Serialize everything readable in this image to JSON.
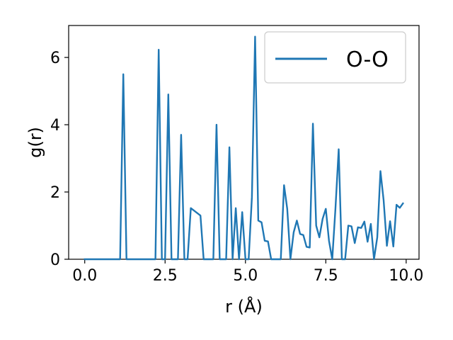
{
  "chart_data": {
    "type": "line",
    "title": "",
    "xlabel": "r (Å)",
    "ylabel": "g(r)",
    "xlim": [
      -0.5,
      10.4
    ],
    "ylim": [
      0,
      6.95
    ],
    "x_ticks": [
      0.0,
      2.5,
      5.0,
      7.5,
      10.0
    ],
    "x_tick_labels": [
      "0.0",
      "2.5",
      "5.0",
      "7.5",
      "10.0"
    ],
    "y_ticks": [
      0,
      2,
      4,
      6
    ],
    "y_tick_labels": [
      "0",
      "2",
      "4",
      "6"
    ],
    "grid": false,
    "legend_position": "top-right",
    "colors": {
      "series": "#1f77b4"
    },
    "series": [
      {
        "name": "O-O",
        "x": [
          0.0,
          1.1,
          1.2,
          1.3,
          2.2,
          2.3,
          2.4,
          2.5,
          2.6,
          2.7,
          2.8,
          2.9,
          3.0,
          3.1,
          3.2,
          3.3,
          3.6,
          3.7,
          4.0,
          4.1,
          4.2,
          4.4,
          4.5,
          4.6,
          4.7,
          4.8,
          4.9,
          5.0,
          5.1,
          5.2,
          5.3,
          5.4,
          5.5,
          5.6,
          5.7,
          5.8,
          5.9,
          6.0,
          6.1,
          6.2,
          6.3,
          6.4,
          6.5,
          6.6,
          6.7,
          6.8,
          6.9,
          7.0,
          7.1,
          7.2,
          7.3,
          7.4,
          7.5,
          7.6,
          7.7,
          7.8,
          7.9,
          8.0,
          8.1,
          8.2,
          8.3,
          8.4,
          8.5,
          8.6,
          8.7,
          8.8,
          8.9,
          9.0,
          9.1,
          9.2,
          9.3,
          9.4,
          9.5,
          9.6,
          9.7,
          9.8,
          9.9
        ],
        "values": [
          0.0,
          0.0,
          5.5,
          0.0,
          0.0,
          6.23,
          0.0,
          0.0,
          4.9,
          0.0,
          0.0,
          0.0,
          3.7,
          0.0,
          0.0,
          1.52,
          1.3,
          0.0,
          0.0,
          4.0,
          0.0,
          0.0,
          3.33,
          0.0,
          1.52,
          0.0,
          1.4,
          0.0,
          0.0,
          1.85,
          6.62,
          1.15,
          1.1,
          0.55,
          0.53,
          0.0,
          0.0,
          0.0,
          0.0,
          2.2,
          1.5,
          0.0,
          0.8,
          1.15,
          0.75,
          0.72,
          0.37,
          0.35,
          4.03,
          1.0,
          0.65,
          1.2,
          1.5,
          0.55,
          0.0,
          1.5,
          3.27,
          0.0,
          0.0,
          1.0,
          0.98,
          0.48,
          0.95,
          0.93,
          1.12,
          0.52,
          1.05,
          0.0,
          0.65,
          2.62,
          1.75,
          0.4,
          1.13,
          0.38,
          1.62,
          1.53,
          1.66
        ]
      }
    ]
  }
}
